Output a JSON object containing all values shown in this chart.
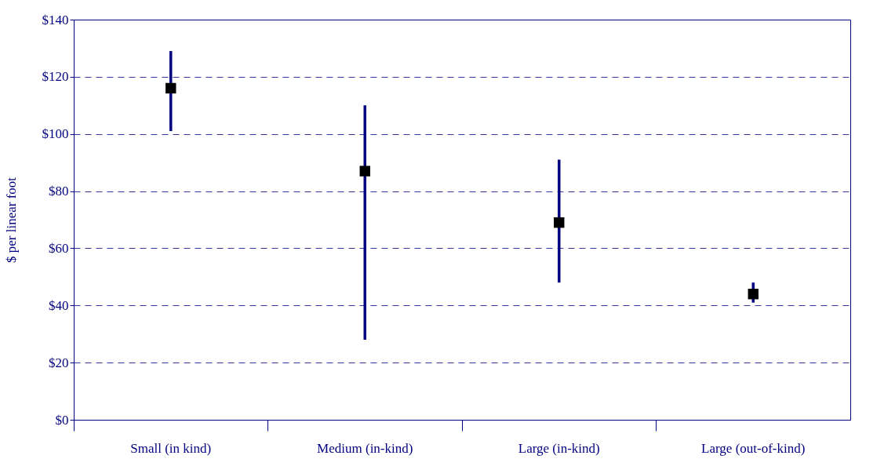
{
  "chart_data": {
    "type": "scatter",
    "ylabel": "$ per linear foot",
    "categories": [
      "Small (in kind)",
      "Medium (in-kind)",
      "Large (in-kind)",
      "Large (out-of-kind)"
    ],
    "series": [
      {
        "color": "#000000",
        "values": [
          116,
          87,
          69,
          44
        ],
        "errors": [
          [
            101,
            129
          ],
          [
            28,
            110
          ],
          [
            48,
            91
          ],
          [
            41,
            48
          ]
        ]
      }
    ],
    "marker": "square",
    "grid": "y",
    "ylim": [
      0,
      140
    ],
    "yticks": [
      {
        "value": 0,
        "label": "$0"
      },
      {
        "value": 20,
        "label": "$20"
      },
      {
        "value": 40,
        "label": "$40"
      },
      {
        "value": 60,
        "label": "$60"
      },
      {
        "value": 80,
        "label": "$80"
      },
      {
        "value": 100,
        "label": "$100"
      },
      {
        "value": 120,
        "label": "$120"
      },
      {
        "value": 140,
        "label": "$140"
      }
    ]
  }
}
